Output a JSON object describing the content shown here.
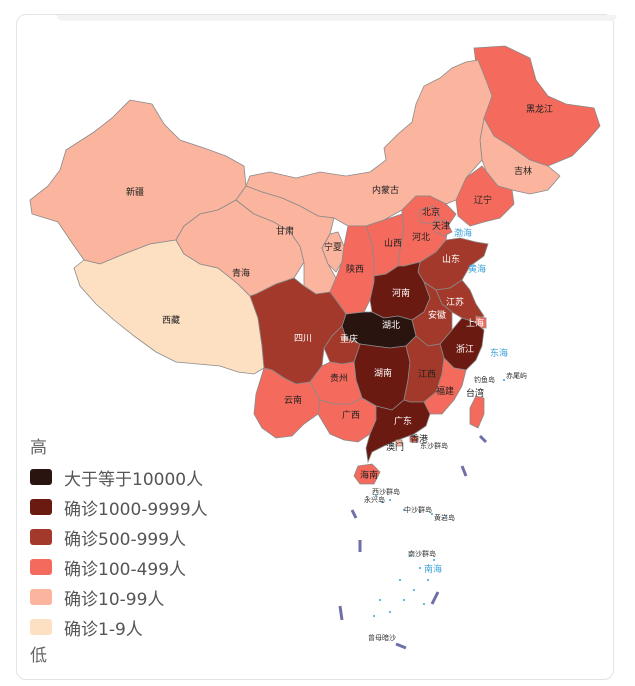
{
  "legend": {
    "high_label": "高",
    "low_label": "低",
    "items": [
      {
        "label": "大于等于10000人",
        "color": "#2a1410"
      },
      {
        "label": "确诊1000-9999人",
        "color": "#6b1a12"
      },
      {
        "label": "确诊500-999人",
        "color": "#a3392a"
      },
      {
        "label": "确诊100-499人",
        "color": "#f46a5c"
      },
      {
        "label": "确诊10-99人",
        "color": "#fbb49e"
      },
      {
        "label": "确诊1-9人",
        "color": "#fde0c2"
      }
    ]
  },
  "provinces": {
    "heilongjiang": {
      "name": "黑龙江",
      "level": 3
    },
    "jilin": {
      "name": "吉林",
      "level": 4
    },
    "liaoning": {
      "name": "辽宁",
      "level": 3
    },
    "neimenggu": {
      "name": "内蒙古",
      "level": 4
    },
    "xinjiang": {
      "name": "新疆",
      "level": 4
    },
    "xizang": {
      "name": "西藏",
      "level": 5
    },
    "qinghai": {
      "name": "青海",
      "level": 4
    },
    "gansu": {
      "name": "甘肃",
      "level": 4
    },
    "ningxia": {
      "name": "宁夏",
      "level": 4
    },
    "shaanxi": {
      "name": "陕西",
      "level": 3
    },
    "shanxi": {
      "name": "山西",
      "level": 3
    },
    "hebei": {
      "name": "河北",
      "level": 3
    },
    "beijing": {
      "name": "北京",
      "level": 3
    },
    "tianjin": {
      "name": "天津",
      "level": 3
    },
    "shandong": {
      "name": "山东",
      "level": 2
    },
    "henan": {
      "name": "河南",
      "level": 1
    },
    "jiangsu": {
      "name": "江苏",
      "level": 2
    },
    "anhui": {
      "name": "安徽",
      "level": 2
    },
    "shanghai": {
      "name": "上海",
      "level": 3
    },
    "zhejiang": {
      "name": "浙江",
      "level": 1
    },
    "hubei": {
      "name": "湖北",
      "level": 0
    },
    "hunan": {
      "name": "湖南",
      "level": 1
    },
    "jiangxi": {
      "name": "江西",
      "level": 2
    },
    "fujian": {
      "name": "福建",
      "level": 3
    },
    "taiwan": {
      "name": "台湾",
      "level": 3
    },
    "sichuan": {
      "name": "四川",
      "level": 2
    },
    "chongqing": {
      "name": "重庆",
      "level": 2
    },
    "guizhou": {
      "name": "贵州",
      "level": 3
    },
    "yunnan": {
      "name": "云南",
      "level": 3
    },
    "guangxi": {
      "name": "广西",
      "level": 3
    },
    "guangdong": {
      "name": "广东",
      "level": 1
    },
    "hainan": {
      "name": "海南",
      "level": 3
    },
    "xianggang": {
      "name": "香港",
      "level": 3
    },
    "aomen": {
      "name": "澳门",
      "level": 4
    }
  },
  "seas": [
    {
      "name": "渤海"
    },
    {
      "name": "黄海"
    },
    {
      "name": "东海"
    },
    {
      "name": "南海"
    }
  ],
  "islands": [
    {
      "name": "钓鱼岛"
    },
    {
      "name": "赤尾屿"
    },
    {
      "name": "东沙群岛"
    },
    {
      "name": "西沙群岛"
    },
    {
      "name": "永兴岛"
    },
    {
      "name": "中沙群岛"
    },
    {
      "name": "黄岩岛"
    },
    {
      "name": "南沙群岛"
    },
    {
      "name": "曾母暗沙"
    }
  ]
}
